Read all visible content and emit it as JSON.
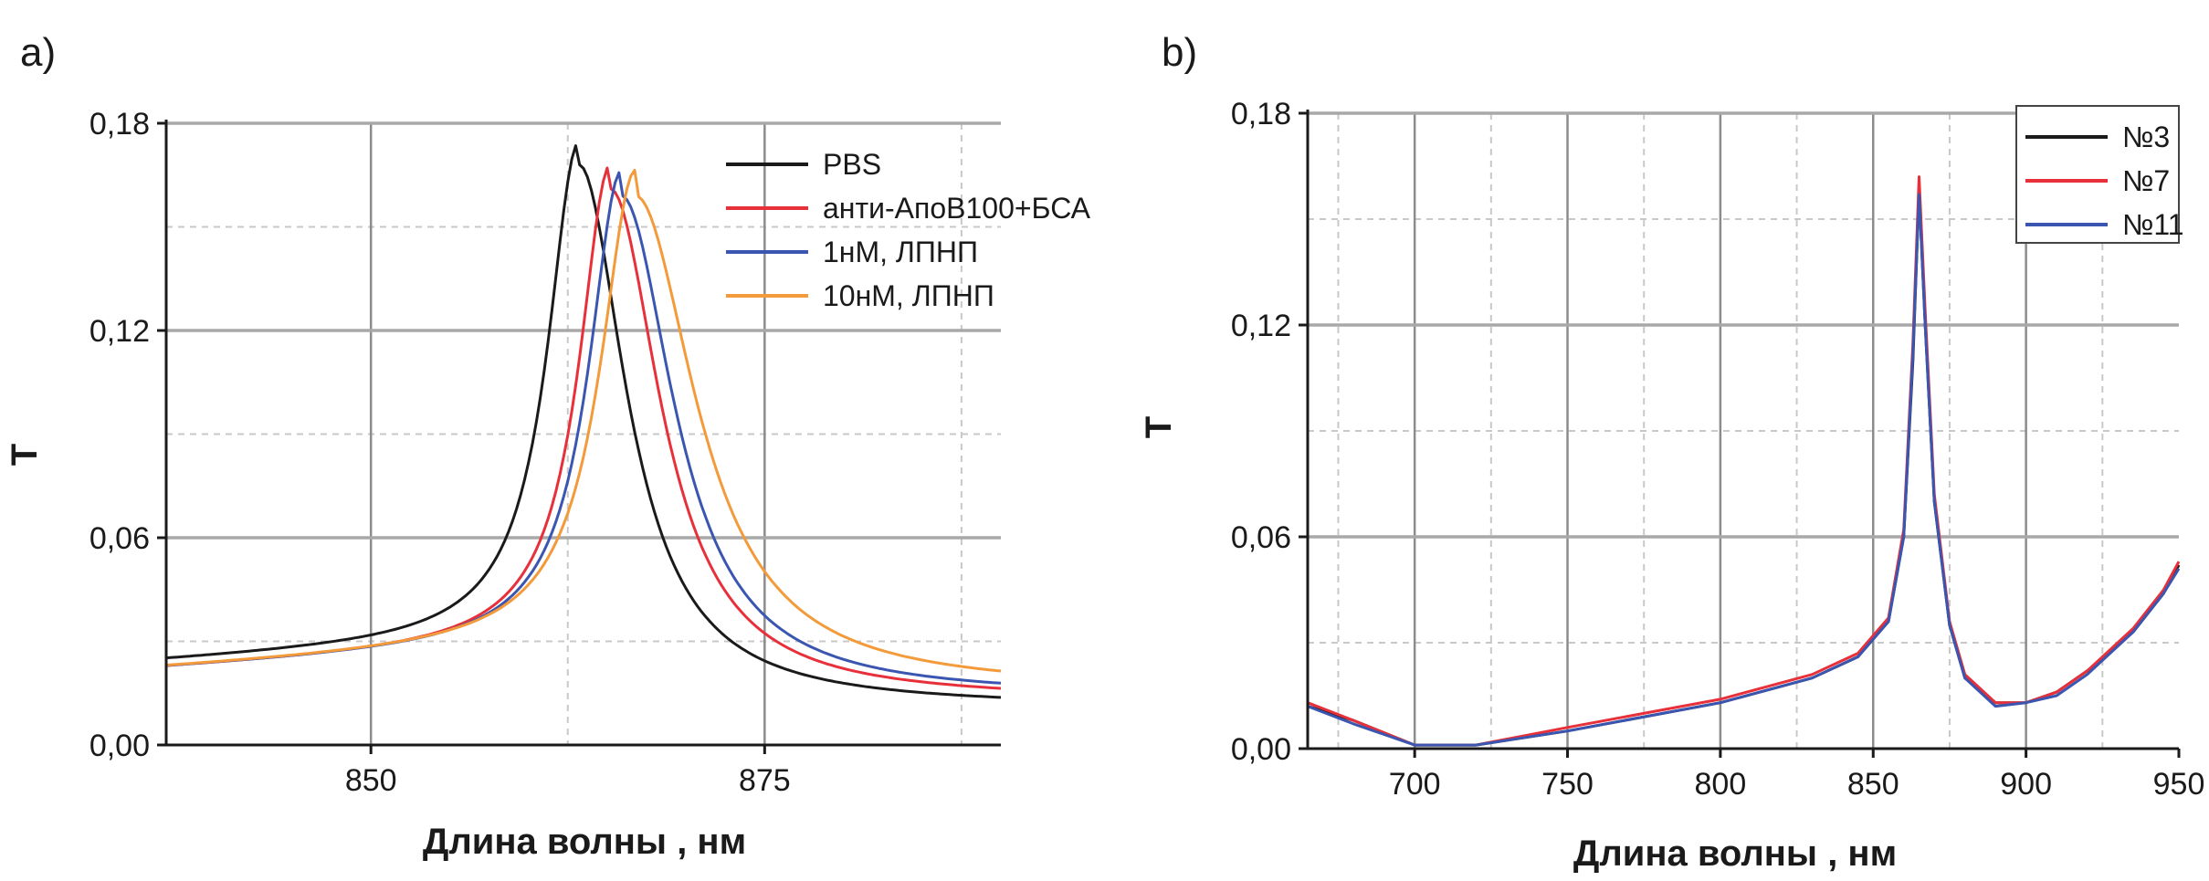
{
  "chart_data": [
    {
      "panel_label": "a)",
      "type": "line",
      "xlabel": "Длина волны , нм",
      "ylabel": "T",
      "xlim": [
        837,
        890
      ],
      "ylim": [
        0,
        0.18
      ],
      "xticks": [
        850,
        875
      ],
      "xtick_labels": [
        "850",
        "875"
      ],
      "yticks": [
        0,
        0.06,
        0.12,
        0.18
      ],
      "ytick_labels": [
        "0,00",
        "0,06",
        "0,12",
        "0,18"
      ],
      "grid": true,
      "legend_position": "top-right",
      "series": [
        {
          "name": "PBS",
          "color": "#1a1a1a",
          "peak_x": 863.2,
          "peak_y": 0.168,
          "hw_left": 2.4,
          "hw_right": 3.6,
          "base_left": 0.024,
          "base_right": 0.011
        },
        {
          "name": "анти-АпоВ100+БСА",
          "color": "#e8303a",
          "peak_x": 865.2,
          "peak_y": 0.161,
          "hw_left": 2.4,
          "hw_right": 3.8,
          "base_left": 0.022,
          "base_right": 0.013
        },
        {
          "name": "1нМ, ЛПНП",
          "color": "#3a56b0",
          "peak_x": 865.9,
          "peak_y": 0.159,
          "hw_left": 2.5,
          "hw_right": 4.0,
          "base_left": 0.022,
          "base_right": 0.014
        },
        {
          "name": "10нМ, ЛПНП",
          "color": "#f39a3a",
          "peak_x": 866.8,
          "peak_y": 0.159,
          "hw_left": 2.7,
          "hw_right": 4.6,
          "base_left": 0.022,
          "base_right": 0.016
        }
      ]
    },
    {
      "panel_label": "b)",
      "type": "line",
      "xlabel": "Длина волны , нм",
      "ylabel": "T",
      "xlim": [
        665,
        950
      ],
      "ylim": [
        0,
        0.18
      ],
      "xticks": [
        700,
        750,
        800,
        850,
        900,
        950
      ],
      "xtick_labels": [
        "700",
        "750",
        "800",
        "850",
        "900",
        "950"
      ],
      "yticks": [
        0,
        0.06,
        0.12,
        0.18
      ],
      "ytick_labels": [
        "0,00",
        "0,06",
        "0,12",
        "0,18"
      ],
      "grid": true,
      "legend_position": "top-right",
      "series": [
        {
          "name": "№3",
          "color": "#1a1a1a",
          "x": [
            665,
            680,
            700,
            720,
            750,
            800,
            830,
            845,
            855,
            860,
            863,
            865,
            867,
            870,
            875,
            880,
            890,
            900,
            910,
            920,
            935,
            945,
            950
          ],
          "y": [
            0.012,
            0.008,
            0.001,
            0.001,
            0.005,
            0.013,
            0.02,
            0.026,
            0.036,
            0.06,
            0.11,
            0.158,
            0.12,
            0.07,
            0.035,
            0.02,
            0.013,
            0.013,
            0.016,
            0.022,
            0.033,
            0.044,
            0.052
          ]
        },
        {
          "name": "№7",
          "color": "#e8303a",
          "x": [
            665,
            680,
            700,
            720,
            750,
            800,
            830,
            845,
            855,
            860,
            863,
            865,
            867,
            870,
            875,
            880,
            890,
            900,
            910,
            920,
            935,
            945,
            950
          ],
          "y": [
            0.013,
            0.008,
            0.001,
            0.001,
            0.006,
            0.014,
            0.021,
            0.027,
            0.037,
            0.062,
            0.115,
            0.162,
            0.124,
            0.072,
            0.036,
            0.021,
            0.013,
            0.013,
            0.016,
            0.022,
            0.034,
            0.045,
            0.053
          ]
        },
        {
          "name": "№11",
          "color": "#3a56b0",
          "x": [
            665,
            680,
            700,
            720,
            750,
            800,
            830,
            845,
            855,
            860,
            863,
            865,
            867,
            870,
            875,
            880,
            890,
            900,
            910,
            920,
            935,
            945,
            950
          ],
          "y": [
            0.012,
            0.007,
            0.001,
            0.001,
            0.005,
            0.013,
            0.02,
            0.026,
            0.036,
            0.06,
            0.112,
            0.157,
            0.12,
            0.07,
            0.035,
            0.02,
            0.012,
            0.013,
            0.015,
            0.021,
            0.033,
            0.044,
            0.051
          ]
        }
      ]
    }
  ]
}
